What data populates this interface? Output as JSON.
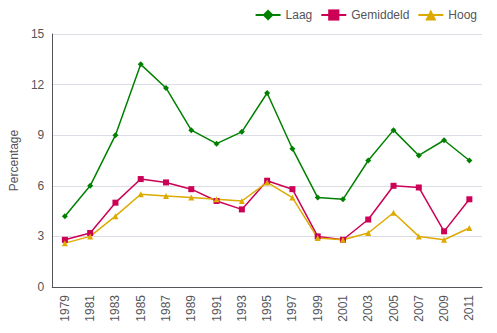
{
  "chart_data": {
    "type": "line",
    "ylabel": "Percentage",
    "categories": [
      "1979",
      "1981",
      "1983",
      "1985",
      "1987",
      "1989",
      "1991",
      "1993",
      "1995",
      "1997",
      "1999",
      "2001",
      "2003",
      "2005",
      "2007",
      "2009",
      "2011"
    ],
    "series": [
      {
        "name": "Laag",
        "color": "#008000",
        "marker": "diamond",
        "values": [
          4.2,
          6.0,
          9.0,
          13.2,
          11.8,
          9.3,
          8.5,
          9.2,
          11.5,
          8.2,
          5.3,
          5.2,
          7.5,
          9.3,
          7.8,
          8.7,
          7.5
        ]
      },
      {
        "name": "Gemiddeld",
        "color": "#cc0055",
        "marker": "square",
        "values": [
          2.8,
          3.2,
          5.0,
          6.4,
          6.2,
          5.8,
          5.1,
          4.6,
          6.3,
          5.8,
          3.0,
          2.8,
          4.0,
          6.0,
          5.9,
          3.3,
          5.2
        ]
      },
      {
        "name": "Hoog",
        "color": "#ddaa00",
        "marker": "triangle",
        "values": [
          2.6,
          3.0,
          4.2,
          5.5,
          5.4,
          5.3,
          5.2,
          5.1,
          6.2,
          5.3,
          2.9,
          2.8,
          3.2,
          4.4,
          3.0,
          2.8,
          3.5
        ]
      }
    ],
    "ylim": [
      0,
      15
    ],
    "yticks": [
      0,
      3,
      6,
      9,
      12,
      15
    ],
    "grid": true,
    "legend": "upper right"
  }
}
